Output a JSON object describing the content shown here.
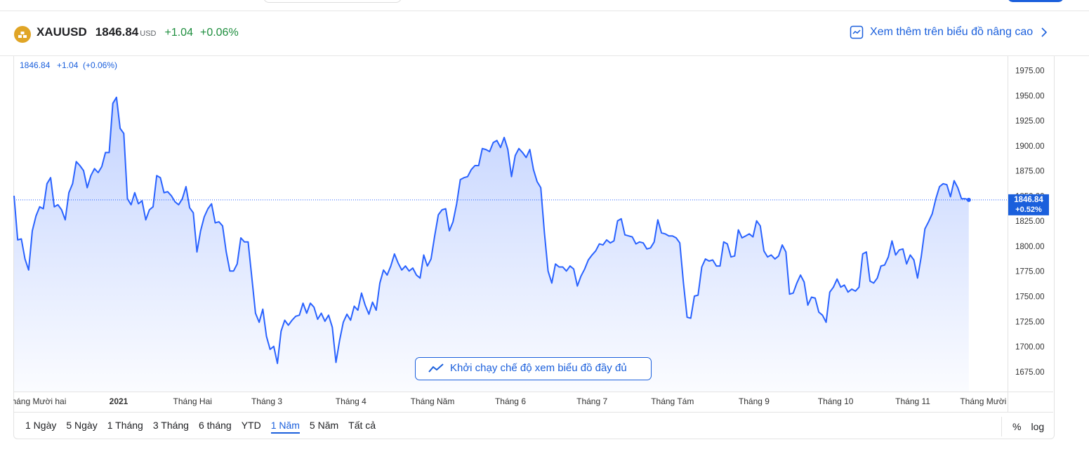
{
  "header": {
    "symbol": "XAUUSD",
    "price": "1846.84",
    "currency": "USD",
    "change": "+1.04",
    "change_percent": "+0.06%",
    "advanced_link": "Xem thêm trên biểu đồ nâng cao"
  },
  "chart_data": {
    "type": "line",
    "legend_price": "1846.84",
    "legend_change": "+1.04",
    "legend_change_percent": "(+0.06%)",
    "last_value_label": "1846.84",
    "last_change_label": "+0.52%",
    "full_view_button": "Khởi chạy chế độ xem biểu đồ đầy đủ",
    "color": "#2962ff",
    "values": [
      1851,
      1807,
      1808,
      1788,
      1777,
      1816,
      1831,
      1840,
      1838,
      1863,
      1869,
      1840,
      1842,
      1837,
      1827,
      1854,
      1863,
      1885,
      1881,
      1876,
      1859,
      1871,
      1878,
      1874,
      1880,
      1894,
      1894,
      1943,
      1949,
      1918,
      1913,
      1848,
      1842,
      1854,
      1843,
      1846,
      1827,
      1837,
      1840,
      1871,
      1869,
      1854,
      1855,
      1851,
      1845,
      1842,
      1848,
      1860,
      1839,
      1834,
      1795,
      1816,
      1830,
      1838,
      1843,
      1824,
      1825,
      1821,
      1795,
      1776,
      1776,
      1783,
      1809,
      1805,
      1805,
      1770,
      1734,
      1725,
      1738,
      1711,
      1698,
      1701,
      1684,
      1716,
      1727,
      1722,
      1727,
      1731,
      1732,
      1744,
      1734,
      1744,
      1740,
      1728,
      1734,
      1726,
      1732,
      1720,
      1685,
      1707,
      1725,
      1733,
      1727,
      1741,
      1737,
      1754,
      1742,
      1733,
      1745,
      1737,
      1764,
      1777,
      1772,
      1781,
      1793,
      1784,
      1777,
      1781,
      1776,
      1779,
      1772,
      1769,
      1792,
      1781,
      1788,
      1811,
      1832,
      1837,
      1838,
      1816,
      1825,
      1843,
      1867,
      1869,
      1870,
      1877,
      1881,
      1881,
      1898,
      1897,
      1895,
      1904,
      1906,
      1899,
      1909,
      1897,
      1870,
      1891,
      1898,
      1894,
      1889,
      1897,
      1877,
      1865,
      1859,
      1814,
      1776,
      1764,
      1783,
      1780,
      1780,
      1776,
      1781,
      1778,
      1761,
      1771,
      1778,
      1787,
      1792,
      1796,
      1803,
      1802,
      1807,
      1804,
      1806,
      1826,
      1828,
      1812,
      1811,
      1810,
      1803,
      1805,
      1804,
      1798,
      1799,
      1805,
      1827,
      1814,
      1813,
      1811,
      1811,
      1809,
      1804,
      1764,
      1730,
      1729,
      1751,
      1752,
      1780,
      1788,
      1786,
      1787,
      1781,
      1781,
      1805,
      1803,
      1790,
      1791,
      1817,
      1809,
      1811,
      1813,
      1810,
      1826,
      1821,
      1796,
      1790,
      1792,
      1788,
      1791,
      1802,
      1795,
      1753,
      1754,
      1764,
      1772,
      1765,
      1742,
      1750,
      1749,
      1735,
      1732,
      1725,
      1755,
      1760,
      1768,
      1760,
      1762,
      1755,
      1758,
      1756,
      1760,
      1793,
      1795,
      1766,
      1764,
      1769,
      1781,
      1782,
      1790,
      1806,
      1792,
      1797,
      1798,
      1783,
      1792,
      1787,
      1769,
      1790,
      1818,
      1825,
      1833,
      1848,
      1860,
      1863,
      1862,
      1850,
      1866,
      1859,
      1848,
      1848,
      1846.84
    ],
    "xlim": [
      0,
      271.6
    ],
    "xticks": [
      {
        "value": 6.1,
        "label": "Tháng Mười hai"
      },
      {
        "value": 28.6,
        "label": "2021"
      },
      {
        "value": 48.8,
        "label": "Tháng Hai"
      },
      {
        "value": 69.1,
        "label": "Tháng 3"
      },
      {
        "value": 92.1,
        "label": "Tháng 4"
      },
      {
        "value": 114.4,
        "label": "Tháng Năm"
      },
      {
        "value": 135.7,
        "label": "Tháng 6"
      },
      {
        "value": 158,
        "label": "Tháng 7"
      },
      {
        "value": 180,
        "label": "Tháng Tám"
      },
      {
        "value": 202.3,
        "label": "Tháng 9"
      },
      {
        "value": 224.6,
        "label": "Tháng 10"
      },
      {
        "value": 245.7,
        "label": "Tháng 11"
      },
      {
        "value": 266.8,
        "label": "Tháng Mười hai"
      }
    ],
    "ylim": [
      1656,
      1990
    ],
    "yticks": [
      {
        "value": 1675,
        "label": "1675.00"
      },
      {
        "value": 1700,
        "label": "1700.00"
      },
      {
        "value": 1725,
        "label": "1725.00"
      },
      {
        "value": 1750,
        "label": "1750.00"
      },
      {
        "value": 1775,
        "label": "1775.00"
      },
      {
        "value": 1800,
        "label": "1800.00"
      },
      {
        "value": 1825,
        "label": "1825.00"
      },
      {
        "value": 1850,
        "label": "1850.00"
      },
      {
        "value": 1875,
        "label": "1875.00"
      },
      {
        "value": 1900,
        "label": "1900.00"
      },
      {
        "value": 1925,
        "label": "1925.00"
      },
      {
        "value": 1950,
        "label": "1950.00"
      },
      {
        "value": 1975,
        "label": "1975.00"
      }
    ],
    "grid": false
  },
  "range_buttons": [
    "1 Ngày",
    "5 Ngày",
    "1 Tháng",
    "3 Tháng",
    "6 tháng",
    "YTD",
    "1 Năm",
    "5 Năm",
    "Tất cả"
  ],
  "selected_range_index": 6,
  "scale_buttons": [
    "%",
    "log"
  ]
}
